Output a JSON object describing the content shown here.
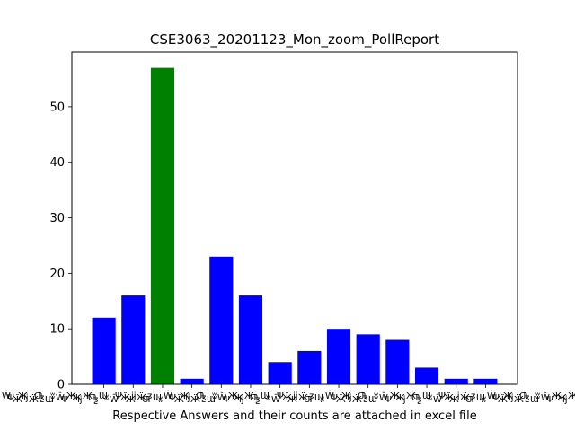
{
  "chart_data": {
    "type": "bar",
    "title": "CSE3063_20201123_Mon_zoom_PollReport",
    "xlabel": "Respective Answers and their counts are attached in excel file",
    "ylabel": "",
    "ylim": [
      0,
      59.85
    ],
    "yticks": [
      0,
      10,
      20,
      30,
      40,
      50
    ],
    "grid": false,
    "values": [
      12,
      16,
      57,
      1,
      23,
      16,
      4,
      6,
      10,
      9,
      8,
      3,
      1,
      1
    ],
    "colors": [
      "#0000ff",
      "#0000ff",
      "#008000",
      "#0000ff",
      "#0000ff",
      "#0000ff",
      "#0000ff",
      "#0000ff",
      "#0000ff",
      "#0000ff",
      "#0000ff",
      "#0000ff",
      "#0000ff",
      "#0000ff"
    ]
  }
}
